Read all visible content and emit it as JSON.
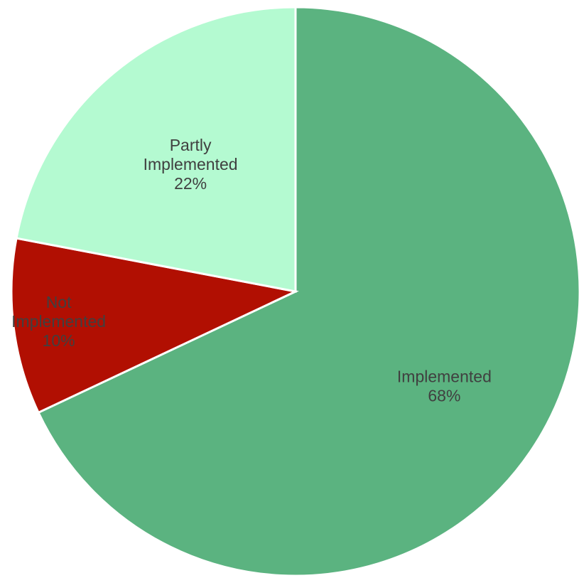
{
  "chart_data": {
    "type": "pie",
    "title": "",
    "start_angle_deg": 90,
    "direction": "clockwise",
    "slices": [
      {
        "category": "Implemented",
        "value": 68,
        "name_label": "Implemented",
        "percent_label": "68%",
        "color": "#5BB380",
        "label_color": "#404040"
      },
      {
        "category": "Not Implemented",
        "value": 10,
        "name_label": "Not\nImplemented",
        "percent_label": "10%",
        "color": "#B10F02",
        "label_color": "#404040"
      },
      {
        "category": "Partly Implemented",
        "value": 22,
        "name_label": "Partly\nImplemented",
        "percent_label": "22%",
        "color": "#B4FAD1",
        "label_color": "#404040"
      }
    ]
  }
}
